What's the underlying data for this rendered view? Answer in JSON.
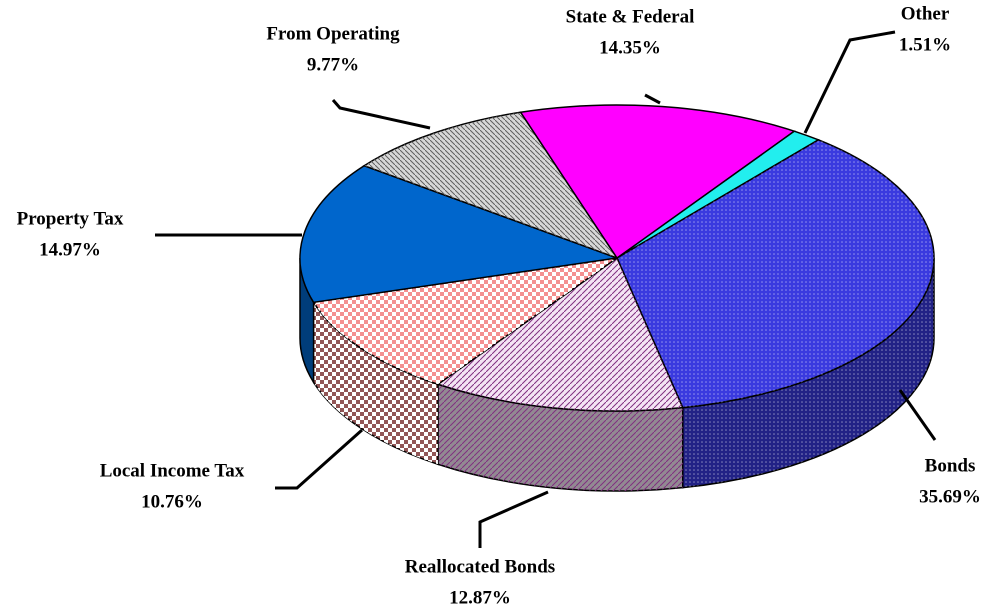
{
  "chart_data": {
    "type": "pie",
    "categories": [
      "Other",
      "Bonds",
      "Reallocated Bonds",
      "Local Income Tax",
      "Property Tax",
      "From Operating",
      "State & Federal"
    ],
    "values": [
      1.51,
      35.69,
      12.87,
      10.76,
      14.97,
      9.77,
      14.35
    ],
    "value_labels": [
      "1.51%",
      "35.69%",
      "12.87%",
      "10.76%",
      "14.97%",
      "9.77%",
      "14.35%"
    ],
    "colors": [
      "#22eeee",
      "#3a3adf",
      "#f4e4f4",
      "#f49090",
      "#0066cc",
      "#d8d8d8",
      "#ff00ff"
    ]
  }
}
